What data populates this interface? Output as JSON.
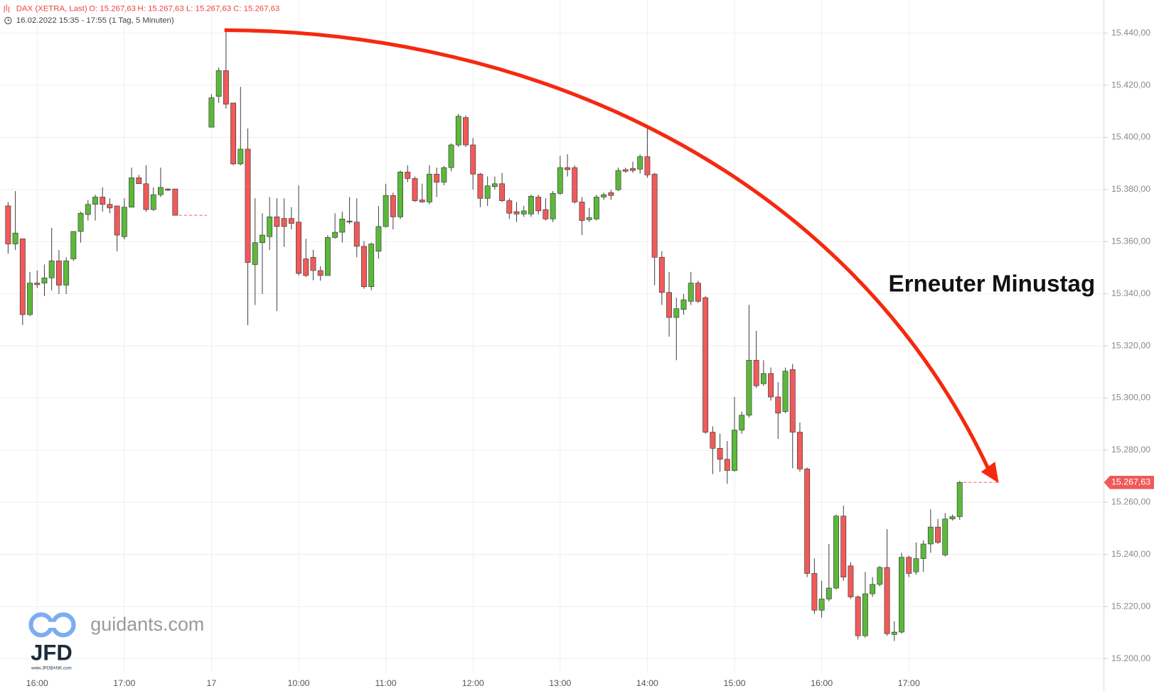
{
  "header": {
    "symbol": "DAX (XETRA, Last)",
    "ohlc": [
      "O: 15.267,63",
      "H: 15.267,63",
      "L: 15.267,63",
      "C: 15.267,63"
    ],
    "range": "16.02.2022 15:35 - 17:55",
    "interval": "(1 Tag, 5 Minuten)"
  },
  "logo": {
    "brand": "guidants.com",
    "name": "JFD",
    "url": "www.JFDBANK.com"
  },
  "chart_data": {
    "type": "candlestick",
    "annotation": "Erneuter Minustag",
    "up_color": "#5cb83a",
    "down_color": "#f05a5a",
    "last_price": {
      "value": 15267.63,
      "label": "15.267,63"
    },
    "ylim": [
      15187.6,
      15452.7
    ],
    "yticks": [
      {
        "value": 15200,
        "label": "15.200,00"
      },
      {
        "value": 15220,
        "label": "15.220,00"
      },
      {
        "value": 15240,
        "label": "15.240,00"
      },
      {
        "value": 15260,
        "label": "15.260,00"
      },
      {
        "value": 15280,
        "label": "15.280,00"
      },
      {
        "value": 15300,
        "label": "15.300,00"
      },
      {
        "value": 15320,
        "label": "15.320,00"
      },
      {
        "value": 15340,
        "label": "15.340,00"
      },
      {
        "value": 15360,
        "label": "15.360,00"
      },
      {
        "value": 15380,
        "label": "15.380,00"
      },
      {
        "value": 15400,
        "label": "15.400,00"
      },
      {
        "value": 15420,
        "label": "15.420,00"
      },
      {
        "value": 15440,
        "label": "15.440,00"
      }
    ],
    "grid": true,
    "categories": [
      null,
      null,
      null,
      null,
      "16:00",
      null,
      null,
      null,
      null,
      null,
      null,
      null,
      null,
      null,
      null,
      null,
      "17:00",
      null,
      null,
      null,
      null,
      null,
      null,
      null,
      null,
      null,
      null,
      null,
      "17",
      null,
      null,
      null,
      null,
      null,
      null,
      null,
      null,
      null,
      null,
      null,
      "10:00",
      null,
      null,
      null,
      null,
      null,
      null,
      null,
      null,
      null,
      null,
      null,
      "11:00",
      null,
      null,
      null,
      null,
      null,
      null,
      null,
      null,
      null,
      null,
      null,
      "12:00",
      null,
      null,
      null,
      null,
      null,
      null,
      null,
      null,
      null,
      null,
      null,
      "13:00",
      null,
      null,
      null,
      null,
      null,
      null,
      null,
      null,
      null,
      null,
      null,
      "14:00",
      null,
      null,
      null,
      null,
      null,
      null,
      null,
      null,
      null,
      null,
      null,
      "15:00",
      null,
      null,
      null,
      null,
      null,
      null,
      null,
      null,
      null,
      null,
      null,
      "16:00",
      null,
      null,
      null,
      null,
      null,
      null,
      null,
      null,
      null,
      null,
      null,
      "17:00",
      null,
      null,
      null,
      null,
      null,
      null,
      null
    ],
    "open": [
      15373.7,
      15359.1,
      15361.1,
      15332.0,
      15344.1,
      15344.1,
      15346.1,
      15352.6,
      15343.3,
      15353.4,
      15363.9,
      15370.4,
      15374.3,
      15377.1,
      15374.3,
      15373.7,
      15361.9,
      15373.2,
      15384.5,
      15382.2,
      15372.3,
      15378.0,
      15380.2,
      15380.2,
      null,
      null,
      null,
      null,
      15403.9,
      15415.7,
      15425.6,
      15413.2,
      15389.8,
      15395.5,
      15351.2,
      15359.6,
      15361.9,
      15369.5,
      15368.9,
      15368.9,
      15367.5,
      15353.4,
      15354.0,
      15348.9,
      15347.0,
      15361.6,
      15363.6,
      15367.5,
      15367.5,
      15358.2,
      15342.7,
      15356.3,
      15365.8,
      15377.7,
      15369.5,
      15386.7,
      15384.2,
      15376.0,
      15375.2,
      15385.9,
      15382.8,
      15388.4,
      15397.1,
      15407.6,
      15397.1,
      15385.9,
      15376.6,
      15381.1,
      15382.2,
      15375.7,
      15371.5,
      15370.6,
      15370.6,
      15377.1,
      15372.3,
      15368.7,
      15378.5,
      15388.4,
      15388.4,
      15375.2,
      15368.4,
      15368.7,
      15377.1,
      15378.8,
      15379.9,
      15387.6,
      15388.1,
      15387.8,
      15392.6,
      15385.9,
      15354.0,
      15340.5,
      15330.9,
      15334.0,
      15337.1,
      15344.1,
      15338.5,
      15286.9,
      15280.7,
      15276.5,
      15272.2,
      15287.7,
      15293.4,
      15314.5,
      15305.5,
      15309.4,
      15300.4,
      15294.8,
      15310.9,
      15286.9,
      15272.8,
      15232.7,
      15218.6,
      15222.9,
      15227.1,
      15254.7,
      15235.6,
      15223.7,
      15208.8,
      15224.9,
      15228.5,
      15235.0,
      15209.3,
      15210.2,
      15238.9,
      15233.3,
      15238.4,
      15244.0,
      15250.5,
      15239.8,
      15253.6,
      15254.5
    ],
    "high": [
      15375.2,
      15379.4,
      15361.1,
      15348.4,
      15348.9,
      15351.2,
      15365.3,
      15356.8,
      15354.0,
      15363.9,
      15371.5,
      15376.0,
      15378.0,
      15380.8,
      15376.6,
      15373.7,
      15376.6,
      15388.4,
      15385.6,
      15389.3,
      15380.8,
      15388.4,
      15380.5,
      15380.2,
      null,
      null,
      null,
      null,
      15416.6,
      15426.8,
      15440.9,
      15413.2,
      15419.4,
      15403.4,
      15376.6,
      15370.9,
      15377.1,
      15376.6,
      15376.6,
      15373.2,
      15381.6,
      15361.1,
      15356.8,
      15350.6,
      15362.5,
      15370.9,
      15371.5,
      15377.1,
      15376.6,
      15360.2,
      15359.6,
      15373.7,
      15382.2,
      15378.8,
      15387.3,
      15389.3,
      15385.0,
      15382.2,
      15389.3,
      15388.4,
      15389.0,
      15397.7,
      15409.0,
      15408.4,
      15399.7,
      15386.4,
      15385.0,
      15385.0,
      15386.4,
      15376.6,
      15375.2,
      15373.7,
      15378.0,
      15378.0,
      15376.6,
      15379.4,
      15392.9,
      15393.5,
      15389.3,
      15377.1,
      15372.9,
      15378.0,
      15378.8,
      15379.9,
      15388.4,
      15388.4,
      15390.7,
      15393.5,
      15404.8,
      15386.4,
      15356.3,
      15348.4,
      15338.5,
      15339.9,
      15348.4,
      15345.0,
      15339.1,
      15289.1,
      15286.3,
      15283.5,
      15300.4,
      15294.8,
      15335.7,
      15325.8,
      15314.5,
      15311.7,
      15306.1,
      15311.7,
      15313.1,
      15290.6,
      15273.3,
      15238.4,
      15229.9,
      15244.0,
      15255.3,
      15258.7,
      15237.0,
      15224.3,
      15233.3,
      15231.3,
      15235.6,
      15249.7,
      15214.4,
      15240.6,
      15239.5,
      15244.6,
      15245.4,
      15257.3,
      15253.6,
      15255.9,
      15255.3,
      15268.2
    ],
    "low": [
      15355.4,
      15356.8,
      15328.0,
      15331.4,
      15342.2,
      15339.1,
      15341.3,
      15339.9,
      15339.9,
      15352.6,
      15359.6,
      15368.1,
      15368.1,
      15371.5,
      15370.9,
      15356.3,
      15360.8,
      15373.2,
      15382.2,
      15371.5,
      15371.8,
      15377.1,
      15379.4,
      15370.1,
      null,
      null,
      null,
      null,
      15403.9,
      15413.2,
      15411.0,
      15389.3,
      15389.3,
      15328.0,
      15335.7,
      15339.9,
      15356.8,
      15333.4,
      15358.0,
      15364.7,
      15347.0,
      15346.4,
      15345.2,
      15345.0,
      15347.0,
      15361.1,
      15359.6,
      15366.7,
      15354.0,
      15341.9,
      15341.3,
      15353.4,
      15365.3,
      15364.7,
      15368.7,
      15382.8,
      15375.2,
      15374.9,
      15374.3,
      15377.1,
      15381.6,
      15387.0,
      15396.3,
      15396.3,
      15380.0,
      15373.2,
      15373.7,
      15380.0,
      15375.2,
      15368.7,
      15367.5,
      15369.5,
      15369.5,
      15370.4,
      15368.1,
      15367.5,
      15378.0,
      15385.0,
      15374.6,
      15362.5,
      15367.5,
      15368.1,
      15376.0,
      15376.0,
      15379.4,
      15386.4,
      15386.4,
      15386.1,
      15384.5,
      15343.3,
      15335.7,
      15323.5,
      15314.5,
      15332.0,
      15335.7,
      15336.5,
      15286.3,
      15270.8,
      15271.7,
      15267.1,
      15271.7,
      15286.3,
      15292.5,
      15303.8,
      15304.7,
      15299.0,
      15284.3,
      15294.2,
      15273.1,
      15271.7,
      15231.3,
      15217.2,
      15215.8,
      15222.0,
      15226.5,
      15229.9,
      15222.9,
      15207.4,
      15208.0,
      15223.7,
      15227.7,
      15208.8,
      15206.8,
      15209.6,
      15231.3,
      15232.2,
      15233.3,
      15240.6,
      15244.0,
      15239.2,
      15253.0,
      15253.3
    ],
    "close": [
      15359.1,
      15363.3,
      15332.0,
      15344.1,
      15343.5,
      15346.1,
      15352.6,
      15343.3,
      15352.6,
      15363.9,
      15370.9,
      15374.3,
      15377.1,
      15374.3,
      15372.9,
      15362.5,
      15373.2,
      15384.5,
      15382.2,
      15372.3,
      15378.0,
      15380.8,
      15379.7,
      15370.1,
      null,
      null,
      null,
      null,
      15415.2,
      15425.6,
      15412.7,
      15389.8,
      15395.5,
      15352.0,
      15359.6,
      15362.5,
      15369.5,
      15365.8,
      15365.8,
      15367.0,
      15347.8,
      15347.0,
      15348.9,
      15347.0,
      15361.6,
      15363.6,
      15368.7,
      15367.9,
      15358.2,
      15342.7,
      15359.1,
      15365.8,
      15377.7,
      15369.5,
      15386.7,
      15384.2,
      15375.7,
      15375.2,
      15385.9,
      15382.8,
      15388.4,
      15397.1,
      15408.1,
      15397.1,
      15385.9,
      15376.6,
      15381.4,
      15382.2,
      15375.7,
      15370.9,
      15370.6,
      15371.8,
      15377.4,
      15371.8,
      15368.7,
      15378.5,
      15388.4,
      15387.6,
      15375.2,
      15368.1,
      15369.2,
      15377.1,
      15378.0,
      15377.7,
      15387.3,
      15387.0,
      15387.3,
      15392.6,
      15385.6,
      15354.0,
      15340.5,
      15330.9,
      15334.3,
      15337.7,
      15344.1,
      15337.1,
      15286.9,
      15280.7,
      15276.5,
      15272.2,
      15287.7,
      15293.4,
      15314.5,
      15304.7,
      15309.4,
      15300.4,
      15294.2,
      15310.3,
      15286.9,
      15272.8,
      15232.7,
      15218.6,
      15222.9,
      15227.1,
      15254.7,
      15231.3,
      15223.7,
      15208.8,
      15224.9,
      15228.5,
      15235.0,
      15209.6,
      15210.2,
      15238.9,
      15232.7,
      15238.4,
      15244.0,
      15250.5,
      15244.6,
      15253.6,
      15254.5,
      15267.63
    ]
  }
}
